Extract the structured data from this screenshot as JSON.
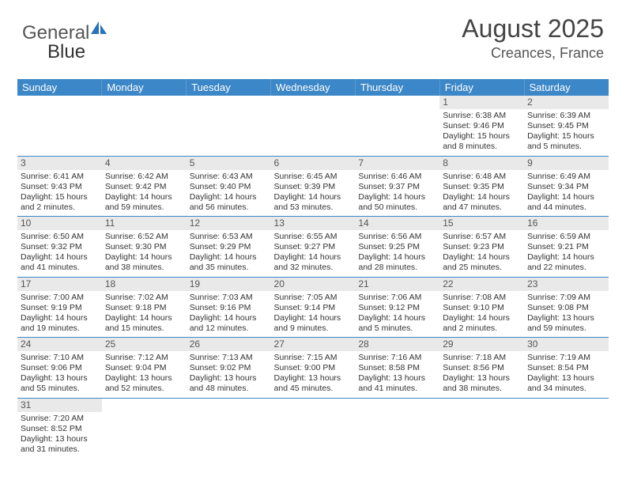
{
  "brand": {
    "part1": "General",
    "part2": "Blue"
  },
  "title": {
    "month": "August 2025",
    "location": "Creances, France"
  },
  "colors": {
    "header_bg": "#3c87c7",
    "header_text": "#ffffff",
    "daynum_bg": "#e9e9e9",
    "border": "#3c87c7",
    "brand_accent": "#2a71b8"
  },
  "weekdays": [
    "Sunday",
    "Monday",
    "Tuesday",
    "Wednesday",
    "Thursday",
    "Friday",
    "Saturday"
  ],
  "weeks": [
    [
      null,
      null,
      null,
      null,
      null,
      {
        "n": "1",
        "sunrise": "Sunrise: 6:38 AM",
        "sunset": "Sunset: 9:46 PM",
        "daylight": "Daylight: 15 hours and 8 minutes."
      },
      {
        "n": "2",
        "sunrise": "Sunrise: 6:39 AM",
        "sunset": "Sunset: 9:45 PM",
        "daylight": "Daylight: 15 hours and 5 minutes."
      }
    ],
    [
      {
        "n": "3",
        "sunrise": "Sunrise: 6:41 AM",
        "sunset": "Sunset: 9:43 PM",
        "daylight": "Daylight: 15 hours and 2 minutes."
      },
      {
        "n": "4",
        "sunrise": "Sunrise: 6:42 AM",
        "sunset": "Sunset: 9:42 PM",
        "daylight": "Daylight: 14 hours and 59 minutes."
      },
      {
        "n": "5",
        "sunrise": "Sunrise: 6:43 AM",
        "sunset": "Sunset: 9:40 PM",
        "daylight": "Daylight: 14 hours and 56 minutes."
      },
      {
        "n": "6",
        "sunrise": "Sunrise: 6:45 AM",
        "sunset": "Sunset: 9:39 PM",
        "daylight": "Daylight: 14 hours and 53 minutes."
      },
      {
        "n": "7",
        "sunrise": "Sunrise: 6:46 AM",
        "sunset": "Sunset: 9:37 PM",
        "daylight": "Daylight: 14 hours and 50 minutes."
      },
      {
        "n": "8",
        "sunrise": "Sunrise: 6:48 AM",
        "sunset": "Sunset: 9:35 PM",
        "daylight": "Daylight: 14 hours and 47 minutes."
      },
      {
        "n": "9",
        "sunrise": "Sunrise: 6:49 AM",
        "sunset": "Sunset: 9:34 PM",
        "daylight": "Daylight: 14 hours and 44 minutes."
      }
    ],
    [
      {
        "n": "10",
        "sunrise": "Sunrise: 6:50 AM",
        "sunset": "Sunset: 9:32 PM",
        "daylight": "Daylight: 14 hours and 41 minutes."
      },
      {
        "n": "11",
        "sunrise": "Sunrise: 6:52 AM",
        "sunset": "Sunset: 9:30 PM",
        "daylight": "Daylight: 14 hours and 38 minutes."
      },
      {
        "n": "12",
        "sunrise": "Sunrise: 6:53 AM",
        "sunset": "Sunset: 9:29 PM",
        "daylight": "Daylight: 14 hours and 35 minutes."
      },
      {
        "n": "13",
        "sunrise": "Sunrise: 6:55 AM",
        "sunset": "Sunset: 9:27 PM",
        "daylight": "Daylight: 14 hours and 32 minutes."
      },
      {
        "n": "14",
        "sunrise": "Sunrise: 6:56 AM",
        "sunset": "Sunset: 9:25 PM",
        "daylight": "Daylight: 14 hours and 28 minutes."
      },
      {
        "n": "15",
        "sunrise": "Sunrise: 6:57 AM",
        "sunset": "Sunset: 9:23 PM",
        "daylight": "Daylight: 14 hours and 25 minutes."
      },
      {
        "n": "16",
        "sunrise": "Sunrise: 6:59 AM",
        "sunset": "Sunset: 9:21 PM",
        "daylight": "Daylight: 14 hours and 22 minutes."
      }
    ],
    [
      {
        "n": "17",
        "sunrise": "Sunrise: 7:00 AM",
        "sunset": "Sunset: 9:19 PM",
        "daylight": "Daylight: 14 hours and 19 minutes."
      },
      {
        "n": "18",
        "sunrise": "Sunrise: 7:02 AM",
        "sunset": "Sunset: 9:18 PM",
        "daylight": "Daylight: 14 hours and 15 minutes."
      },
      {
        "n": "19",
        "sunrise": "Sunrise: 7:03 AM",
        "sunset": "Sunset: 9:16 PM",
        "daylight": "Daylight: 14 hours and 12 minutes."
      },
      {
        "n": "20",
        "sunrise": "Sunrise: 7:05 AM",
        "sunset": "Sunset: 9:14 PM",
        "daylight": "Daylight: 14 hours and 9 minutes."
      },
      {
        "n": "21",
        "sunrise": "Sunrise: 7:06 AM",
        "sunset": "Sunset: 9:12 PM",
        "daylight": "Daylight: 14 hours and 5 minutes."
      },
      {
        "n": "22",
        "sunrise": "Sunrise: 7:08 AM",
        "sunset": "Sunset: 9:10 PM",
        "daylight": "Daylight: 14 hours and 2 minutes."
      },
      {
        "n": "23",
        "sunrise": "Sunrise: 7:09 AM",
        "sunset": "Sunset: 9:08 PM",
        "daylight": "Daylight: 13 hours and 59 minutes."
      }
    ],
    [
      {
        "n": "24",
        "sunrise": "Sunrise: 7:10 AM",
        "sunset": "Sunset: 9:06 PM",
        "daylight": "Daylight: 13 hours and 55 minutes."
      },
      {
        "n": "25",
        "sunrise": "Sunrise: 7:12 AM",
        "sunset": "Sunset: 9:04 PM",
        "daylight": "Daylight: 13 hours and 52 minutes."
      },
      {
        "n": "26",
        "sunrise": "Sunrise: 7:13 AM",
        "sunset": "Sunset: 9:02 PM",
        "daylight": "Daylight: 13 hours and 48 minutes."
      },
      {
        "n": "27",
        "sunrise": "Sunrise: 7:15 AM",
        "sunset": "Sunset: 9:00 PM",
        "daylight": "Daylight: 13 hours and 45 minutes."
      },
      {
        "n": "28",
        "sunrise": "Sunrise: 7:16 AM",
        "sunset": "Sunset: 8:58 PM",
        "daylight": "Daylight: 13 hours and 41 minutes."
      },
      {
        "n": "29",
        "sunrise": "Sunrise: 7:18 AM",
        "sunset": "Sunset: 8:56 PM",
        "daylight": "Daylight: 13 hours and 38 minutes."
      },
      {
        "n": "30",
        "sunrise": "Sunrise: 7:19 AM",
        "sunset": "Sunset: 8:54 PM",
        "daylight": "Daylight: 13 hours and 34 minutes."
      }
    ],
    [
      {
        "n": "31",
        "sunrise": "Sunrise: 7:20 AM",
        "sunset": "Sunset: 8:52 PM",
        "daylight": "Daylight: 13 hours and 31 minutes."
      },
      null,
      null,
      null,
      null,
      null,
      null
    ]
  ]
}
